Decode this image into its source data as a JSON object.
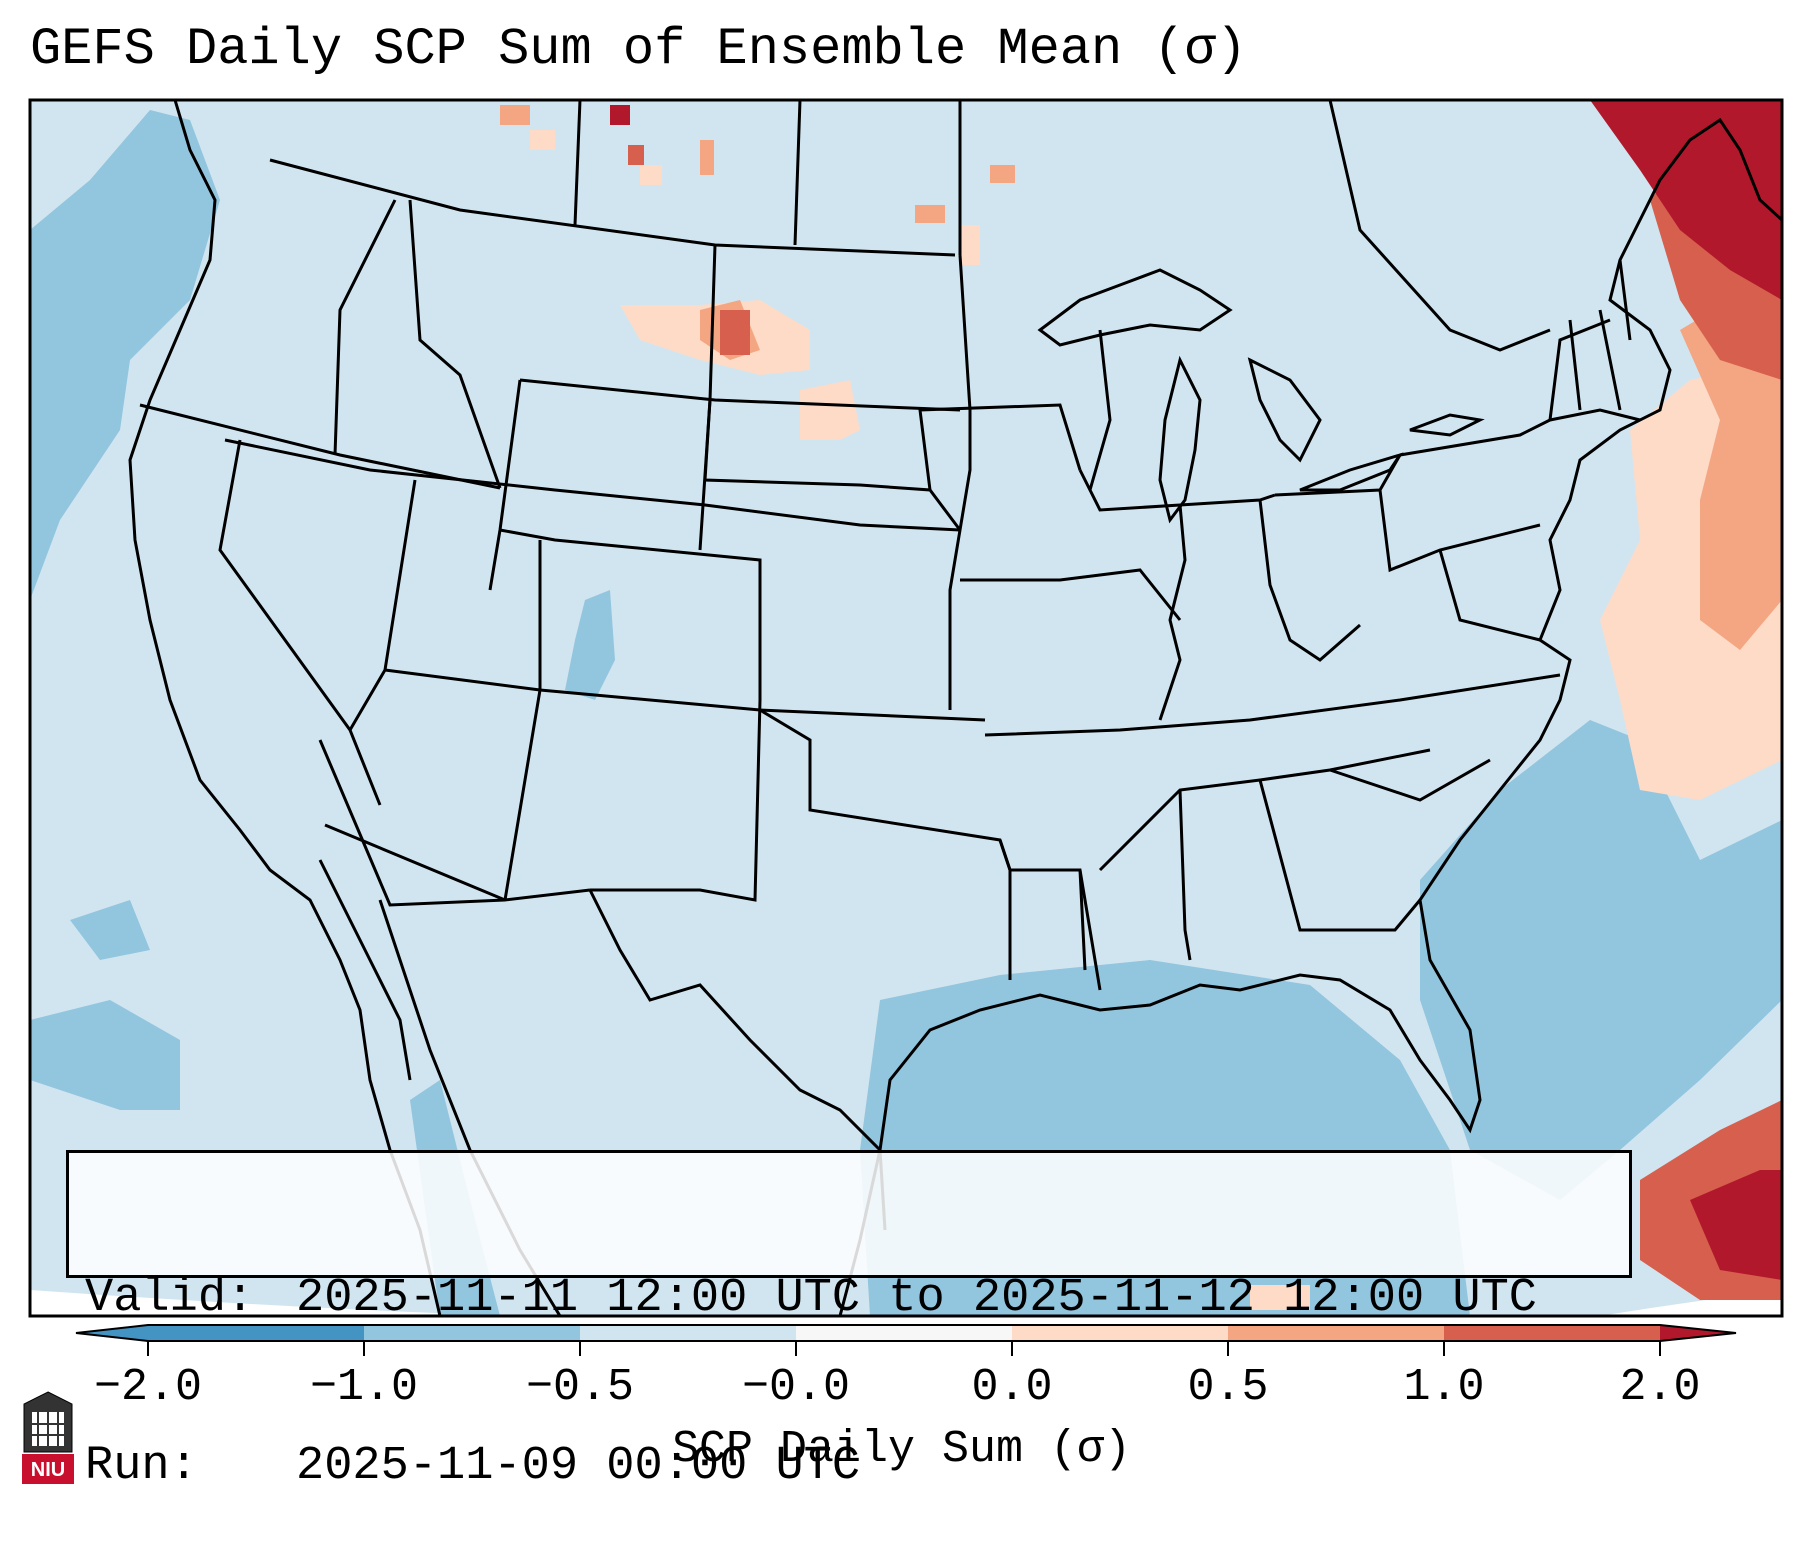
{
  "title": "GEFS Daily SCP Sum of Ensemble Mean (σ)",
  "info": {
    "valid_label": "Valid:",
    "valid_value": "2025-11-11 12:00 UTC to 2025-11-12 12:00 UTC",
    "run_label": "Run:",
    "run_value": "2025-11-09 00:00 UTC"
  },
  "colorbar": {
    "label": "SCP Daily Sum (σ)",
    "ticks": [
      "−2.0",
      "−1.0",
      "−0.5",
      "−0.0",
      "0.0",
      "0.5",
      "1.0",
      "2.0"
    ],
    "colors": [
      "#4393c3",
      "#92c5de",
      "#d1e5f0",
      "#f7f7f7",
      "#fddbc7",
      "#f4a582",
      "#d6604d",
      "#b2182b"
    ]
  },
  "logo": {
    "text": "NIU"
  },
  "icons": [
    "niu-logo-icon"
  ]
}
